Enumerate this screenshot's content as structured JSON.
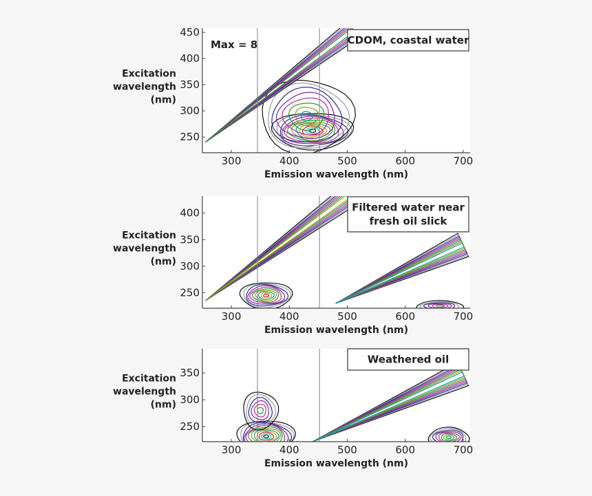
{
  "chart_data": [
    {
      "type": "contour",
      "title": "CDOM, coastal water",
      "annotation": "Max = 8",
      "xlabel": "Emission wavelength (nm)",
      "ylabel": [
        "Excitation",
        "wavelength",
        "(nm)"
      ],
      "xlim": [
        250,
        712
      ],
      "ylim": [
        220,
        458
      ],
      "xticks": [
        300,
        400,
        500,
        600,
        700
      ],
      "yticks": [
        250,
        300,
        350,
        400,
        450
      ],
      "reference_lines_x": [
        345,
        452
      ],
      "features": [
        {
          "kind": "peak",
          "em": 440,
          "ex": 262,
          "sx": 70,
          "sy": 35,
          "levels": 12
        },
        {
          "kind": "peak",
          "em": 430,
          "ex": 290,
          "sx": 80,
          "sy": 70,
          "levels": 8
        },
        {
          "kind": "ridge",
          "from": [
            255,
            240
          ],
          "to": [
            510,
            455
          ],
          "levels": 6
        }
      ]
    },
    {
      "type": "contour",
      "title": [
        "Filtered water near",
        "fresh oil slick"
      ],
      "xlabel": "Emission wavelength (nm)",
      "ylabel": [
        "Excitation",
        "wavelength",
        "(nm)"
      ],
      "xlim": [
        250,
        712
      ],
      "ylim": [
        221,
        432
      ],
      "xticks": [
        300,
        400,
        500,
        600,
        700
      ],
      "yticks": [
        250,
        300,
        350,
        400
      ],
      "reference_lines_x": [
        345,
        452
      ],
      "features": [
        {
          "kind": "peak",
          "em": 360,
          "ex": 245,
          "sx": 45,
          "sy": 25,
          "levels": 10
        },
        {
          "kind": "ridge",
          "from": [
            255,
            235
          ],
          "to": [
            500,
            430
          ],
          "levels": 7
        },
        {
          "kind": "ridge",
          "from": [
            480,
            230
          ],
          "to": [
            700,
            340
          ],
          "levels": 8
        },
        {
          "kind": "peak",
          "em": 660,
          "ex": 225,
          "sx": 40,
          "sy": 10,
          "levels": 6
        }
      ]
    },
    {
      "type": "contour",
      "title": "Weathered oil",
      "xlabel": "Emission wavelength (nm)",
      "ylabel": [
        "Excitation",
        "wavelength",
        "(nm)"
      ],
      "xlim": [
        250,
        712
      ],
      "ylim": [
        222,
        395
      ],
      "xticks": [
        300,
        400,
        500,
        600,
        700
      ],
      "yticks": [
        250,
        300,
        350
      ],
      "reference_lines_x": [
        345,
        452
      ],
      "features": [
        {
          "kind": "peak",
          "em": 360,
          "ex": 232,
          "sx": 50,
          "sy": 30,
          "levels": 12
        },
        {
          "kind": "peak",
          "em": 350,
          "ex": 280,
          "sx": 30,
          "sy": 35,
          "levels": 6
        },
        {
          "kind": "ridge",
          "from": [
            440,
            222
          ],
          "to": [
            700,
            348
          ],
          "levels": 8
        },
        {
          "kind": "peak",
          "em": 675,
          "ex": 230,
          "sx": 35,
          "sy": 18,
          "levels": 8
        }
      ]
    }
  ],
  "contour_colors": [
    "#111111",
    "#9a9ea6",
    "#2a2a8c",
    "#7a2a9a",
    "#c0269a",
    "#1f9a2a",
    "#8a9a1a",
    "#169aa0",
    "#c8a014",
    "#b8241c",
    "#18c0e0"
  ]
}
